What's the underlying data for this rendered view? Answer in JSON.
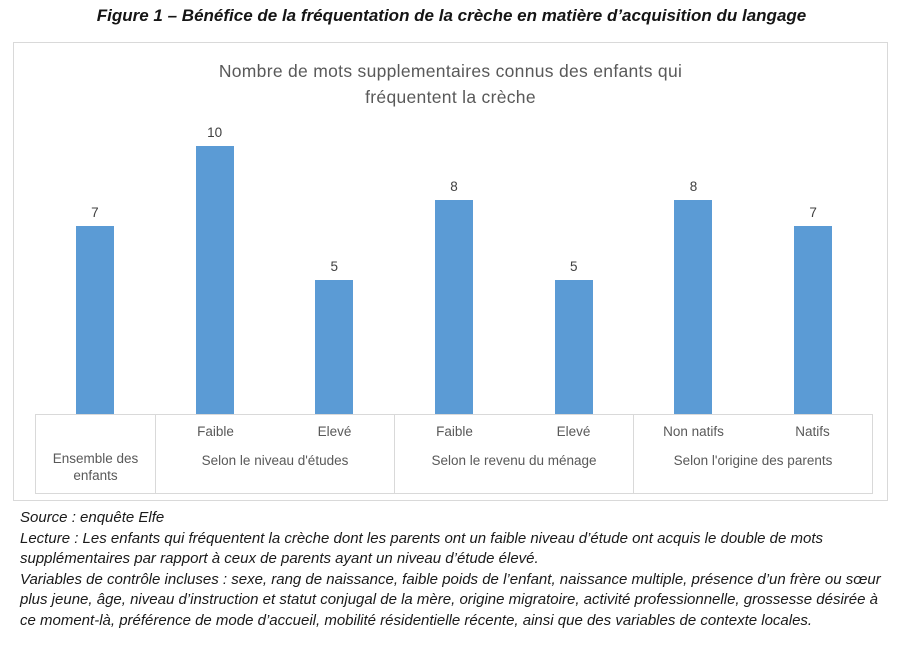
{
  "figure_title": "Figure 1 – Bénéfice de la fréquentation de la crèche en matière d’acquisition du langage",
  "chart_data": {
    "type": "bar",
    "title": "Nombre de mots supplementaires connus des enfants qui fréquentent la crèche",
    "title_lines": [
      "Nombre de mots supplementaires connus des enfants qui",
      "fréquentent la crèche"
    ],
    "categories": [
      "Ensemble des enfants",
      "Faible",
      "Elevé",
      "Faible",
      "Elevé",
      "Non natifs",
      "Natifs"
    ],
    "values": [
      7,
      10,
      5,
      8,
      5,
      8,
      7
    ],
    "groups": [
      {
        "label": "Ensemble des enfants",
        "span": 1,
        "sublabels": []
      },
      {
        "label": "Selon le niveau d'études",
        "span": 2,
        "sublabels": [
          "Faible",
          "Elevé"
        ]
      },
      {
        "label": "Selon le revenu du ménage",
        "span": 2,
        "sublabels": [
          "Faible",
          "Elevé"
        ]
      },
      {
        "label": "Selon l'origine des parents",
        "span": 2,
        "sublabels": [
          "Non natifs",
          "Natifs"
        ]
      }
    ],
    "ylim": [
      0,
      10
    ],
    "bar_color": "#5b9bd5",
    "data_labels": true,
    "grid": false,
    "legend": false,
    "title_color": "#595959",
    "axis_label_color": "#595959",
    "border_color": "#d9d9d9"
  },
  "notes": {
    "source": "Source : enquête Elfe",
    "lecture": "Lecture : Les enfants qui fréquentent la crèche dont les parents ont un faible niveau d’étude ont acquis le double de mots supplémentaires par rapport à ceux de parents ayant un niveau d’étude élevé.",
    "variables": "Variables de contrôle incluses : sexe, rang de naissance, faible poids de l’enfant, naissance multiple, présence d’un frère ou sœur plus jeune, âge, niveau d’instruction et statut conjugal de la mère, origine migratoire, activité professionnelle, grossesse désirée à ce moment-là, préférence de mode d’accueil, mobilité résidentielle récente, ainsi que des variables de contexte locales."
  }
}
